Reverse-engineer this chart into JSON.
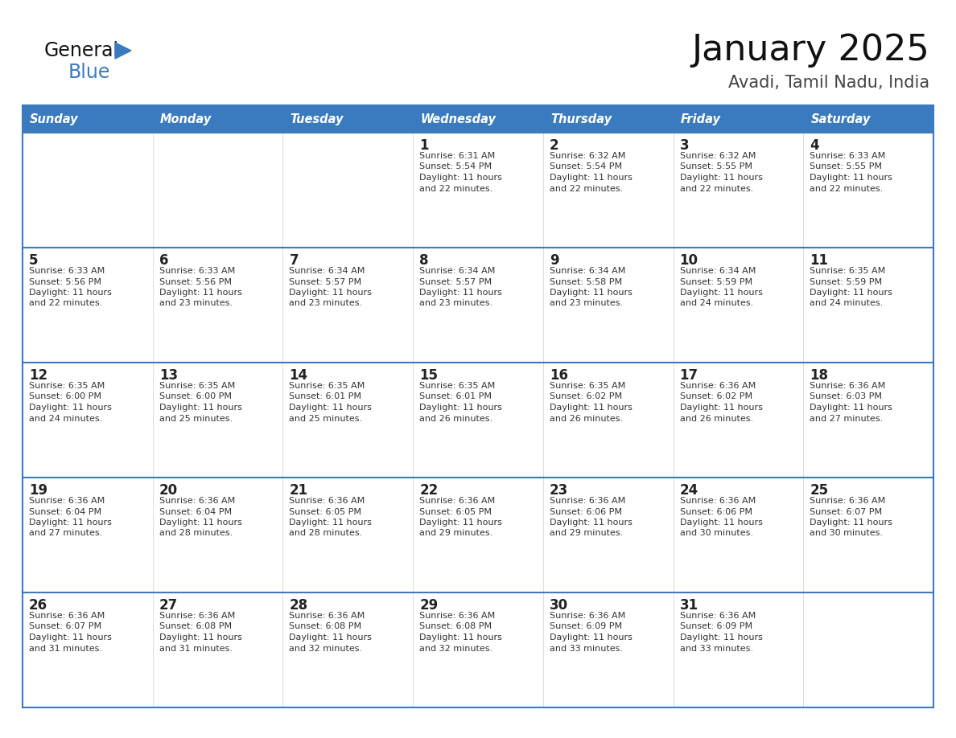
{
  "title": "January 2025",
  "subtitle": "Avadi, Tamil Nadu, India",
  "header_bg_color": "#3A7BBF",
  "header_text_color": "#FFFFFF",
  "cell_bg_color": "#FFFFFF",
  "row_separator_color": "#3A7BBF",
  "cell_border_color": "#CCCCCC",
  "text_color": "#333333",
  "day_num_color": "#222222",
  "days_of_week": [
    "Sunday",
    "Monday",
    "Tuesday",
    "Wednesday",
    "Thursday",
    "Friday",
    "Saturday"
  ],
  "calendar_data": [
    [
      {
        "day": "",
        "sunrise": "",
        "sunset": "",
        "daylight": ""
      },
      {
        "day": "",
        "sunrise": "",
        "sunset": "",
        "daylight": ""
      },
      {
        "day": "",
        "sunrise": "",
        "sunset": "",
        "daylight": ""
      },
      {
        "day": "1",
        "sunrise": "6:31 AM",
        "sunset": "5:54 PM",
        "daylight": "11 hours and 22 minutes."
      },
      {
        "day": "2",
        "sunrise": "6:32 AM",
        "sunset": "5:54 PM",
        "daylight": "11 hours and 22 minutes."
      },
      {
        "day": "3",
        "sunrise": "6:32 AM",
        "sunset": "5:55 PM",
        "daylight": "11 hours and 22 minutes."
      },
      {
        "day": "4",
        "sunrise": "6:33 AM",
        "sunset": "5:55 PM",
        "daylight": "11 hours and 22 minutes."
      }
    ],
    [
      {
        "day": "5",
        "sunrise": "6:33 AM",
        "sunset": "5:56 PM",
        "daylight": "11 hours and 22 minutes."
      },
      {
        "day": "6",
        "sunrise": "6:33 AM",
        "sunset": "5:56 PM",
        "daylight": "11 hours and 23 minutes."
      },
      {
        "day": "7",
        "sunrise": "6:34 AM",
        "sunset": "5:57 PM",
        "daylight": "11 hours and 23 minutes."
      },
      {
        "day": "8",
        "sunrise": "6:34 AM",
        "sunset": "5:57 PM",
        "daylight": "11 hours and 23 minutes."
      },
      {
        "day": "9",
        "sunrise": "6:34 AM",
        "sunset": "5:58 PM",
        "daylight": "11 hours and 23 minutes."
      },
      {
        "day": "10",
        "sunrise": "6:34 AM",
        "sunset": "5:59 PM",
        "daylight": "11 hours and 24 minutes."
      },
      {
        "day": "11",
        "sunrise": "6:35 AM",
        "sunset": "5:59 PM",
        "daylight": "11 hours and 24 minutes."
      }
    ],
    [
      {
        "day": "12",
        "sunrise": "6:35 AM",
        "sunset": "6:00 PM",
        "daylight": "11 hours and 24 minutes."
      },
      {
        "day": "13",
        "sunrise": "6:35 AM",
        "sunset": "6:00 PM",
        "daylight": "11 hours and 25 minutes."
      },
      {
        "day": "14",
        "sunrise": "6:35 AM",
        "sunset": "6:01 PM",
        "daylight": "11 hours and 25 minutes."
      },
      {
        "day": "15",
        "sunrise": "6:35 AM",
        "sunset": "6:01 PM",
        "daylight": "11 hours and 26 minutes."
      },
      {
        "day": "16",
        "sunrise": "6:35 AM",
        "sunset": "6:02 PM",
        "daylight": "11 hours and 26 minutes."
      },
      {
        "day": "17",
        "sunrise": "6:36 AM",
        "sunset": "6:02 PM",
        "daylight": "11 hours and 26 minutes."
      },
      {
        "day": "18",
        "sunrise": "6:36 AM",
        "sunset": "6:03 PM",
        "daylight": "11 hours and 27 minutes."
      }
    ],
    [
      {
        "day": "19",
        "sunrise": "6:36 AM",
        "sunset": "6:04 PM",
        "daylight": "11 hours and 27 minutes."
      },
      {
        "day": "20",
        "sunrise": "6:36 AM",
        "sunset": "6:04 PM",
        "daylight": "11 hours and 28 minutes."
      },
      {
        "day": "21",
        "sunrise": "6:36 AM",
        "sunset": "6:05 PM",
        "daylight": "11 hours and 28 minutes."
      },
      {
        "day": "22",
        "sunrise": "6:36 AM",
        "sunset": "6:05 PM",
        "daylight": "11 hours and 29 minutes."
      },
      {
        "day": "23",
        "sunrise": "6:36 AM",
        "sunset": "6:06 PM",
        "daylight": "11 hours and 29 minutes."
      },
      {
        "day": "24",
        "sunrise": "6:36 AM",
        "sunset": "6:06 PM",
        "daylight": "11 hours and 30 minutes."
      },
      {
        "day": "25",
        "sunrise": "6:36 AM",
        "sunset": "6:07 PM",
        "daylight": "11 hours and 30 minutes."
      }
    ],
    [
      {
        "day": "26",
        "sunrise": "6:36 AM",
        "sunset": "6:07 PM",
        "daylight": "11 hours and 31 minutes."
      },
      {
        "day": "27",
        "sunrise": "6:36 AM",
        "sunset": "6:08 PM",
        "daylight": "11 hours and 31 minutes."
      },
      {
        "day": "28",
        "sunrise": "6:36 AM",
        "sunset": "6:08 PM",
        "daylight": "11 hours and 32 minutes."
      },
      {
        "day": "29",
        "sunrise": "6:36 AM",
        "sunset": "6:08 PM",
        "daylight": "11 hours and 32 minutes."
      },
      {
        "day": "30",
        "sunrise": "6:36 AM",
        "sunset": "6:09 PM",
        "daylight": "11 hours and 33 minutes."
      },
      {
        "day": "31",
        "sunrise": "6:36 AM",
        "sunset": "6:09 PM",
        "daylight": "11 hours and 33 minutes."
      },
      {
        "day": "",
        "sunrise": "",
        "sunset": "",
        "daylight": ""
      }
    ]
  ]
}
